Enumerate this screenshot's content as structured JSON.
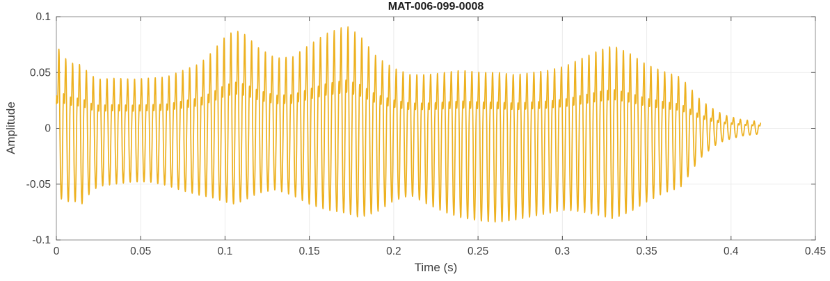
{
  "figure": {
    "title": "MAT-006-099-0008",
    "xlabel": "Time (s)",
    "ylabel": "Amplitude"
  },
  "chart_data": {
    "type": "line",
    "title": "MAT-006-099-0008",
    "xlabel": "Time (s)",
    "ylabel": "Amplitude",
    "xlim": [
      0,
      0.45
    ],
    "ylim": [
      -0.1,
      0.1
    ],
    "x_ticks": [
      0,
      0.05,
      0.1,
      0.15,
      0.2,
      0.25,
      0.3,
      0.35,
      0.4,
      0.45
    ],
    "x_tick_labels": [
      "0",
      "0.05",
      "0.1",
      "0.15",
      "0.2",
      "0.25",
      "0.3",
      "0.35",
      "0.4",
      "0.45"
    ],
    "y_ticks": [
      -0.1,
      -0.05,
      0,
      0.05,
      0.1
    ],
    "y_tick_labels": [
      "-0.1",
      "-0.05",
      "0",
      "0.05",
      "0.1"
    ],
    "grid": true,
    "legend": null,
    "line_color": "#EDB120",
    "line_width": 1.7,
    "axis_color": "#8f8f8f",
    "tick_color": "#4d4d4d",
    "grid_color": "#ebebeb",
    "tick_label_color": "#424242",
    "signal": {
      "kind": "amplitude-modulated audio waveform (dense oscillation filling envelope)",
      "fundamental_hz": 245,
      "duration_s": 0.4175,
      "harmonics": [
        [
          1,
          1.0,
          0.0
        ],
        [
          2,
          0.38,
          2.3
        ],
        [
          3,
          0.14,
          1.0
        ]
      ],
      "envelope_breakpoints": {
        "t": [
          0,
          0.002,
          0.005,
          0.01,
          0.015,
          0.02,
          0.025,
          0.035,
          0.045,
          0.055,
          0.065,
          0.075,
          0.085,
          0.092,
          0.1,
          0.106,
          0.112,
          0.12,
          0.13,
          0.14,
          0.15,
          0.16,
          0.172,
          0.18,
          0.19,
          0.2,
          0.21,
          0.22,
          0.23,
          0.24,
          0.252,
          0.262,
          0.272,
          0.282,
          0.292,
          0.302,
          0.312,
          0.322,
          0.33,
          0.34,
          0.35,
          0.36,
          0.37,
          0.376,
          0.381,
          0.386,
          0.391,
          0.396,
          0.401,
          0.406,
          0.411,
          0.4175
        ],
        "pos": [
          0.06,
          0.075,
          0.063,
          0.058,
          0.057,
          0.048,
          0.044,
          0.045,
          0.044,
          0.045,
          0.046,
          0.052,
          0.058,
          0.068,
          0.082,
          0.088,
          0.084,
          0.072,
          0.063,
          0.064,
          0.075,
          0.085,
          0.092,
          0.083,
          0.064,
          0.054,
          0.048,
          0.048,
          0.05,
          0.052,
          0.05,
          0.05,
          0.048,
          0.05,
          0.052,
          0.056,
          0.063,
          0.07,
          0.074,
          0.067,
          0.057,
          0.051,
          0.046,
          0.036,
          0.027,
          0.021,
          0.016,
          0.012,
          0.01,
          0.008,
          0.007,
          0.006
        ],
        "neg": [
          0.05,
          0.062,
          0.066,
          0.065,
          0.068,
          0.058,
          0.052,
          0.05,
          0.048,
          0.048,
          0.051,
          0.056,
          0.06,
          0.062,
          0.066,
          0.068,
          0.064,
          0.058,
          0.055,
          0.06,
          0.068,
          0.073,
          0.076,
          0.08,
          0.075,
          0.065,
          0.06,
          0.068,
          0.075,
          0.08,
          0.083,
          0.084,
          0.082,
          0.079,
          0.076,
          0.073,
          0.075,
          0.078,
          0.081,
          0.075,
          0.066,
          0.058,
          0.053,
          0.04,
          0.028,
          0.021,
          0.015,
          0.011,
          0.009,
          0.007,
          0.006,
          0.005
        ]
      }
    }
  }
}
